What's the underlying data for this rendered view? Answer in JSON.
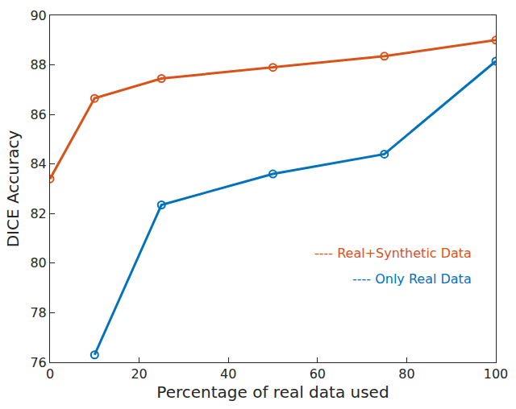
{
  "chart_data": {
    "type": "line",
    "x_label": "Percentage of real data used",
    "y_label": "DICE Accuracy",
    "x": [
      0,
      10,
      25,
      50,
      75,
      100
    ],
    "series": [
      {
        "name": "---- Real+Synthetic Data",
        "color": "#d95319",
        "marker": "circle-open",
        "line_style": "solid",
        "values": [
          83.4,
          86.65,
          87.45,
          87.9,
          88.35,
          89.0
        ]
      },
      {
        "name": "---- Only Real Data",
        "color": "#0072bd",
        "marker": "circle-open",
        "line_style": "solid",
        "values": [
          null,
          76.3,
          82.35,
          83.6,
          84.4,
          88.15
        ]
      }
    ],
    "xlim": [
      0,
      100
    ],
    "xticks": [
      0,
      20,
      40,
      60,
      80,
      100
    ],
    "ylim": [
      76,
      90
    ],
    "yticks": [
      76,
      78,
      80,
      82,
      84,
      86,
      88,
      90
    ],
    "grid": false,
    "legend": "right"
  }
}
